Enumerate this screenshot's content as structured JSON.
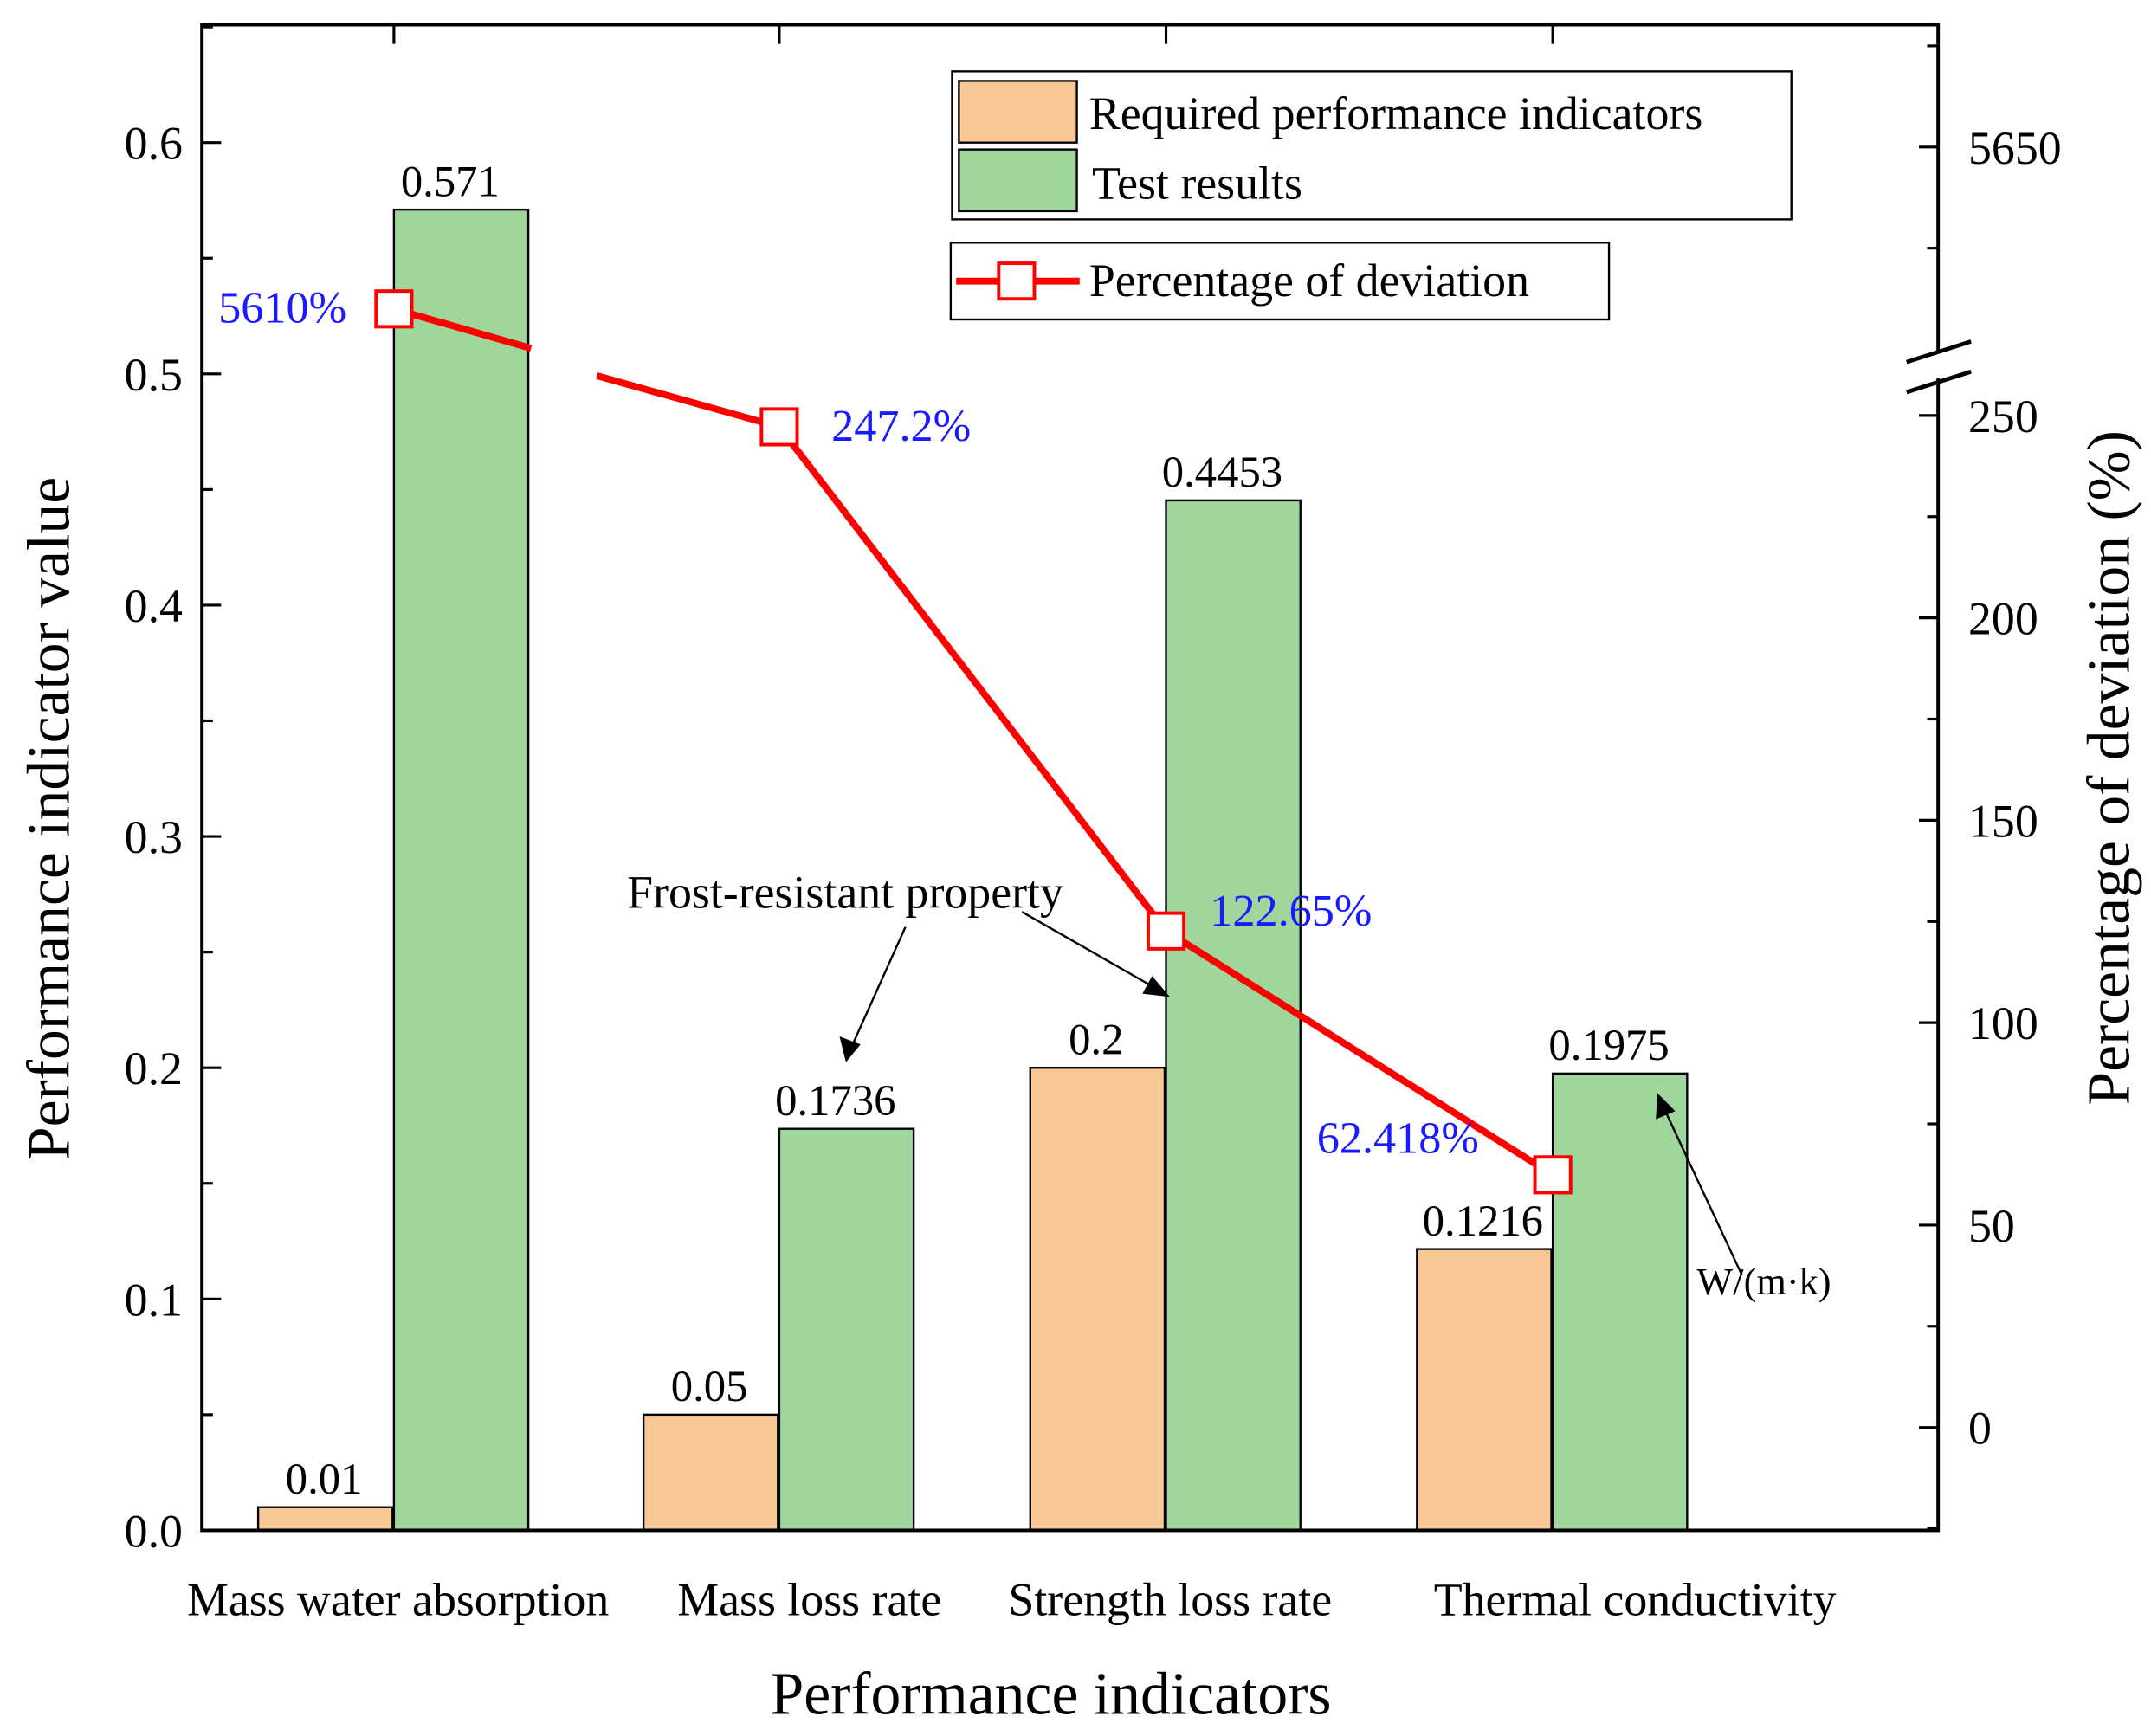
{
  "chart_data": {
    "type": "bar",
    "title": "",
    "xlabel": "Performance indicators",
    "ylabel": "Performance indicator value",
    "y2label": "Percentage of deviation (%)",
    "categories": [
      "Mass water absorption",
      "Mass loss rate",
      "Strength loss rate",
      "Thermal conductivity"
    ],
    "ylim": [
      0,
      0.65
    ],
    "yticks": [
      "0.0",
      "0.1",
      "0.2",
      "0.3",
      "0.4",
      "0.5",
      "0.6"
    ],
    "y2ticks_lower": [
      "0",
      "50",
      "100",
      "150",
      "200",
      "250"
    ],
    "y2ticks_upper": [
      "5650"
    ],
    "y2_break": [
      265,
      5600
    ],
    "series": [
      {
        "name": "Required performance indicators",
        "type": "bar",
        "color": "#f9c796",
        "values": [
          0.01,
          0.05,
          0.2,
          0.1216
        ],
        "labels": [
          "0.01",
          "0.05",
          "0.2",
          "0.1216"
        ]
      },
      {
        "name": "Test results",
        "type": "bar",
        "color": "#9ed69b",
        "values": [
          0.571,
          0.1736,
          0.4453,
          0.1975
        ],
        "labels": [
          "0.571",
          "0.1736",
          "0.4453",
          "0.1975"
        ]
      },
      {
        "name": "Percentage of deviation",
        "type": "line",
        "axis": "right",
        "color": "#ff0000",
        "values": [
          5610,
          247.2,
          122.65,
          62.418
        ],
        "labels": [
          "5610%",
          "247.2%",
          "122.65%",
          "62.418%"
        ]
      }
    ],
    "legend": {
      "placement": "top-right"
    },
    "annotations": [
      "Frost-resistant property",
      "W/(m·k)"
    ]
  }
}
